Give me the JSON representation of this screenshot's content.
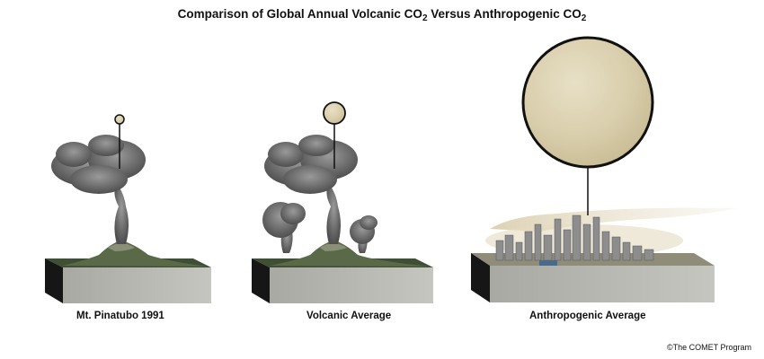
{
  "title": {
    "prefix": "Comparison of Global Annual Volcanic CO",
    "sub1": "2",
    "middle": " Versus Anthropogenic CO",
    "sub2": "2"
  },
  "panels": [
    {
      "id": "pinatubo",
      "label": "Mt. Pinatubo 1991"
    },
    {
      "id": "volcanic-average",
      "label": "Volcanic Average"
    },
    {
      "id": "anthropogenic-average",
      "label": "Anthropogenic Average"
    }
  ],
  "copyright": "©The COMET Program",
  "colors": {
    "co2_sphere": "#d9ceac",
    "smoke": "#6f6f6f",
    "ground_top": "#4a5a3a",
    "block_front": "#b8b8b2",
    "block_side": "#1a1a1a",
    "haze": "#d8ccaa"
  }
}
